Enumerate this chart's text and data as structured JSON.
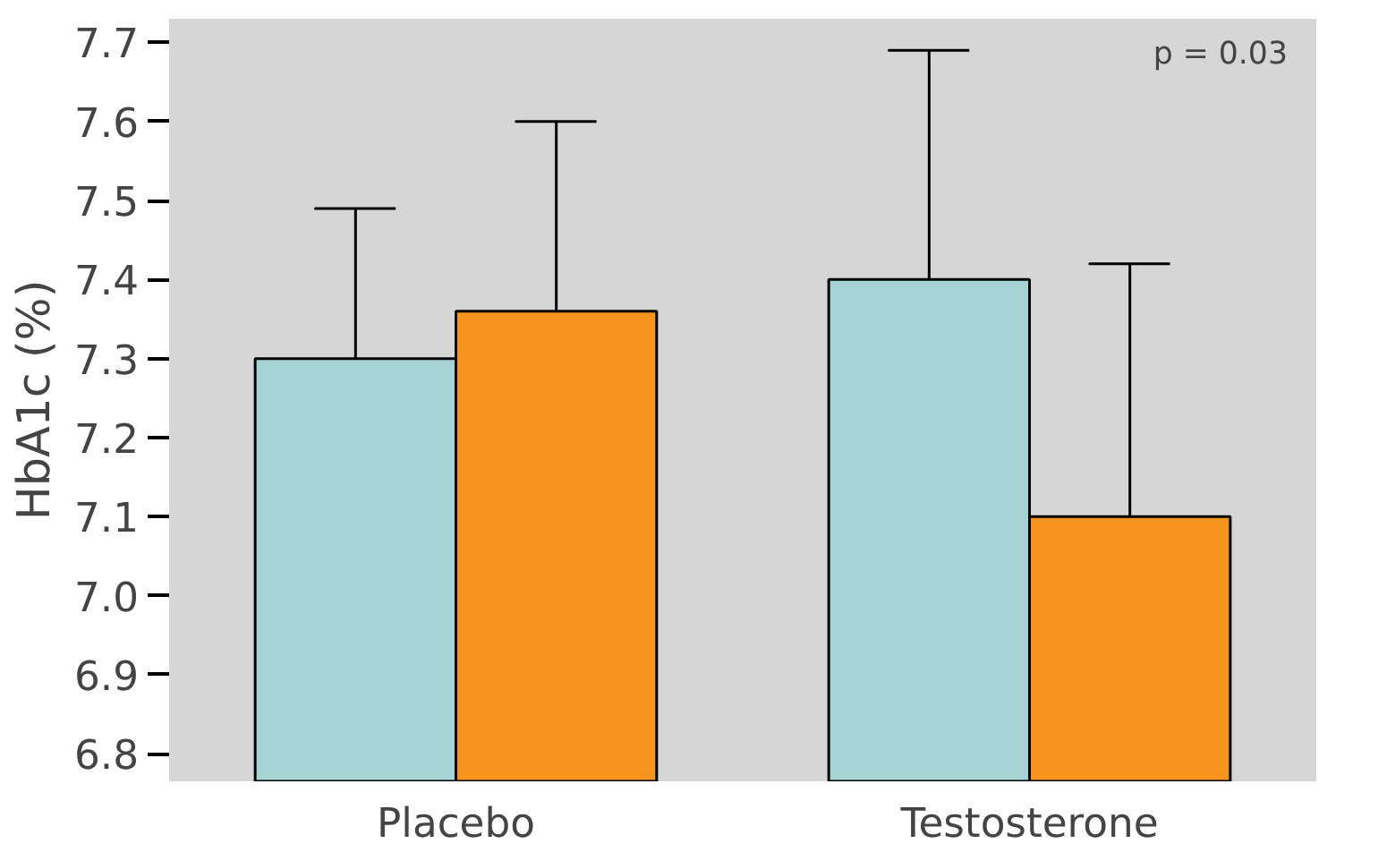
{
  "chart_data": {
    "type": "bar",
    "ylabel": "HbA1c (%)",
    "categories": [
      "Placebo",
      "Testosterone"
    ],
    "series": [
      {
        "color": "#a8d3d5",
        "values": [
          7.3,
          7.4
        ],
        "errors": [
          [
            7.3,
            7.49
          ],
          [
            7.4,
            7.69
          ]
        ]
      },
      {
        "color": "#f7941d",
        "values": [
          7.36,
          7.1
        ],
        "errors": [
          [
            7.36,
            7.6
          ],
          [
            7.1,
            7.42
          ]
        ]
      }
    ],
    "ylim": [
      6.765,
      7.73
    ],
    "yticks": [
      6.8,
      6.9,
      {
        "value": 7.0,
        "label": "7.0"
      },
      7.1,
      7.2,
      7.3,
      7.4,
      7.5,
      7.6,
      7.7
    ],
    "annotations": [
      "p = 0.03"
    ],
    "grid": false
  }
}
